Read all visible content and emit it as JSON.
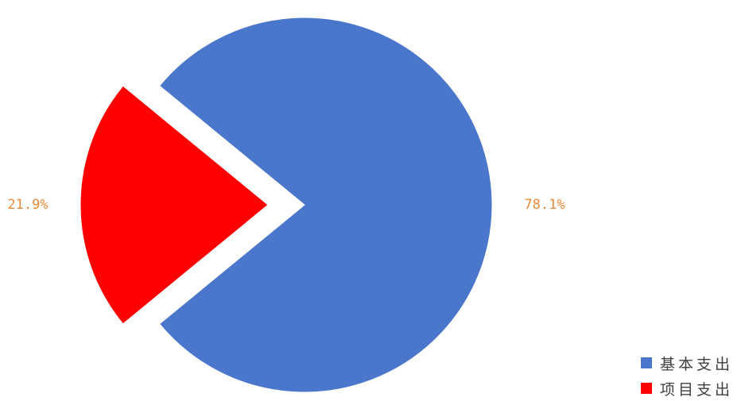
{
  "chart_data": {
    "type": "pie",
    "slices": [
      {
        "name": "基本支出",
        "value": 78.1,
        "label": "78.1%",
        "color": "#4A76CB",
        "exploded": false
      },
      {
        "name": "项目支出",
        "value": 21.9,
        "label": "21.9%",
        "color": "#FF0000",
        "exploded": true
      }
    ],
    "label_color": "#E98A3A",
    "legend": {
      "position": "bottom-right",
      "items": [
        {
          "label": "基本支出",
          "color": "#4A76CB"
        },
        {
          "label": "项目支出",
          "color": "#FF0000"
        }
      ]
    }
  }
}
